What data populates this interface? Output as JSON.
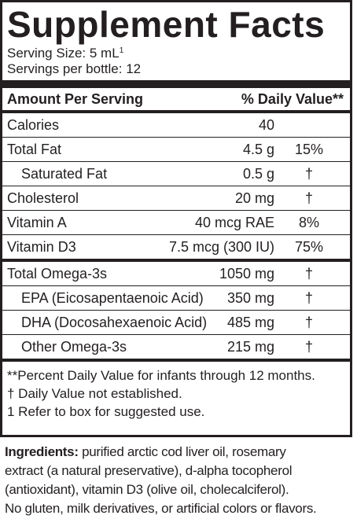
{
  "title": "Supplement Facts",
  "serving_size_label": "Serving Size: 5 mL",
  "serving_size_footnote": "1",
  "servings_per_bottle": "Servings per bottle: 12",
  "header": {
    "amount_label": "Amount Per Serving",
    "dv_label": "% Daily Value**"
  },
  "nutrients": [
    {
      "name": "Calories",
      "amount": "40",
      "dv": ""
    },
    {
      "name": "Total Fat",
      "amount": "4.5 g",
      "dv": "15%"
    },
    {
      "name": "Saturated Fat",
      "amount": "0.5 g",
      "dv": "†"
    },
    {
      "name": "Cholesterol",
      "amount": "20 mg",
      "dv": "†"
    },
    {
      "name": "Vitamin A",
      "amount": "40 mcg RAE",
      "dv": "8%"
    },
    {
      "name": "Vitamin D3",
      "amount": "7.5 mcg (300 IU)",
      "dv": "75%"
    }
  ],
  "omega": [
    {
      "name": "Total Omega-3s",
      "amount": "1050 mg",
      "dv": "†"
    },
    {
      "name": "EPA (Eicosapentaenoic Acid)",
      "amount": "350 mg",
      "dv": "†"
    },
    {
      "name": "DHA (Docosahexaenoic Acid)",
      "amount": "485 mg",
      "dv": "†"
    },
    {
      "name": "Other Omega-3s",
      "amount": "215 mg",
      "dv": "†"
    }
  ],
  "footnotes": [
    "**Percent Daily Value for infants through 12 months.",
    "†  Daily Value not established.",
    "1 Refer to box for suggested use."
  ],
  "ingredients": {
    "label": "Ingredients:",
    "line1": " purified arctic cod liver oil, rosemary",
    "line2": "extract (a natural preservative), d-alpha tocopherol",
    "line3": "(antioxidant), vitamin D3 (olive oil, cholecalciferol).",
    "line4": "No gluten, milk derivatives, or artificial colors or flavors."
  }
}
